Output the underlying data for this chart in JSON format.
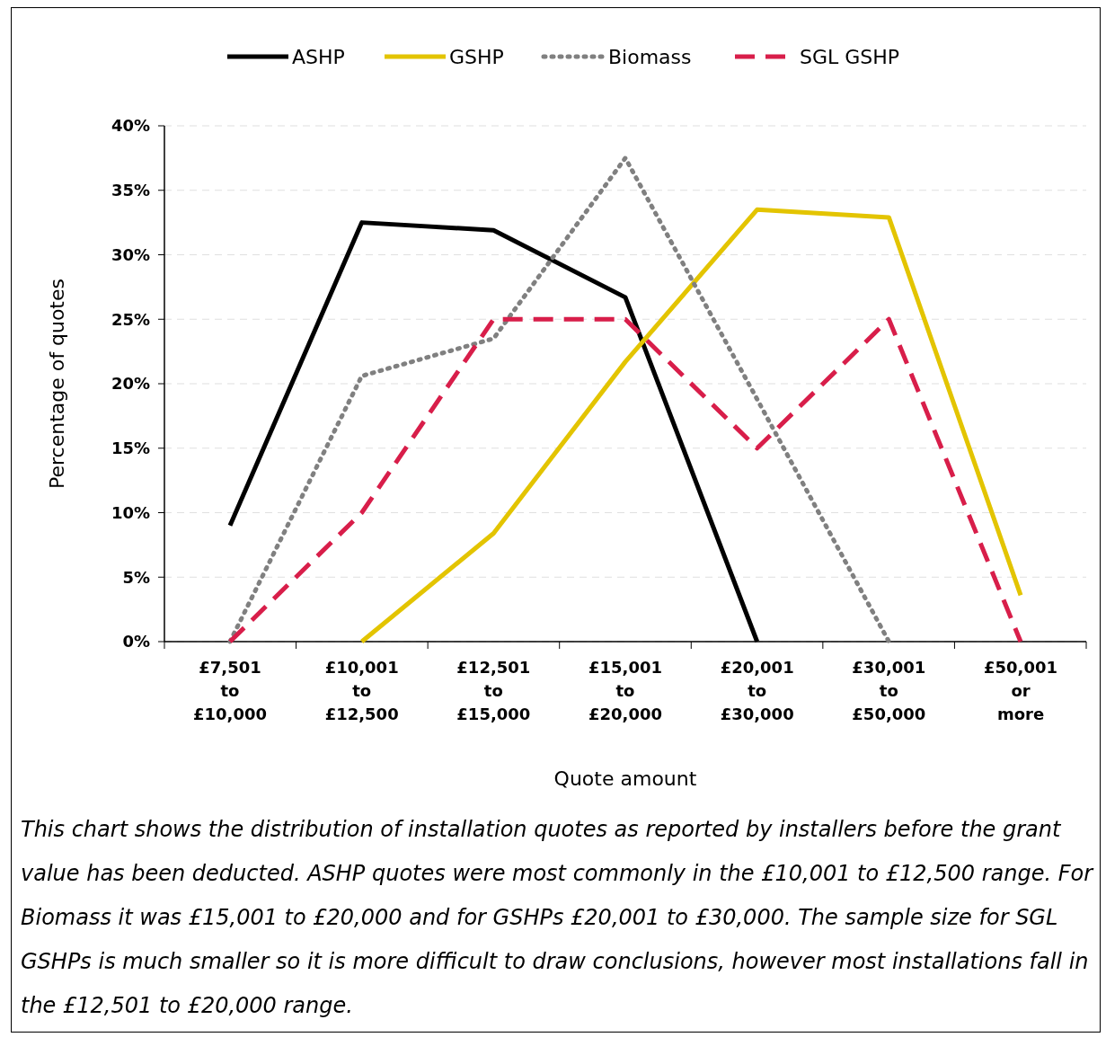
{
  "chart_data": {
    "type": "line",
    "xlabel": "Quote amount",
    "ylabel": "Percentage of quotes",
    "categories": [
      "£7,501 to £10,000",
      "£10,001 to £12,500",
      "£12,501 to £15,000",
      "£15,001 to £20,000",
      "£20,001 to £30,000",
      "£30,001 to £50,000",
      "£50,001 or more"
    ],
    "series": [
      {
        "name": "ASHP",
        "color": "#000000",
        "line_style": "solid",
        "values": [
          9,
          32.5,
          31.9,
          26.7,
          0,
          null,
          null
        ]
      },
      {
        "name": "GSHP",
        "color": "#e3c400",
        "line_style": "solid",
        "values": [
          null,
          0,
          8.4,
          21.7,
          33.5,
          32.9,
          3.6
        ]
      },
      {
        "name": "Biomass",
        "color": "#808080",
        "line_style": "dotted",
        "values": [
          0,
          20.6,
          23.5,
          37.5,
          18.8,
          0,
          null
        ]
      },
      {
        "name": "SGL GSHP",
        "color": "#d81e4a",
        "line_style": "dashed",
        "values": [
          0,
          10,
          25,
          25,
          15,
          25,
          0
        ]
      }
    ],
    "ylim": [
      0,
      40
    ],
    "yticks": [
      {
        "value": 0,
        "label": "0%"
      },
      {
        "value": 5,
        "label": "5%"
      },
      {
        "value": 10,
        "label": "10%"
      },
      {
        "value": 15,
        "label": "15%"
      },
      {
        "value": 20,
        "label": "20%"
      },
      {
        "value": 25,
        "label": "25%"
      },
      {
        "value": 30,
        "label": "30%"
      },
      {
        "value": 35,
        "label": "35%"
      },
      {
        "value": 40,
        "label": "40%"
      }
    ],
    "grid": "y",
    "legend": "top",
    "marker": "none",
    "annotations": [
      "This chart shows the distribution of installation quotes as reported by installers before the grant value has been deducted. ASHP quotes were most commonly in the £10,001 to £12,500 range. For Biomass it was £15,001 to £20,000 and for GSHPs £20,001 to £30,000. The sample size for SGL GSHPs is much smaller so it is more difficult to draw conclusions, however most installations fall in the £12,501 to £20,000 range."
    ]
  }
}
